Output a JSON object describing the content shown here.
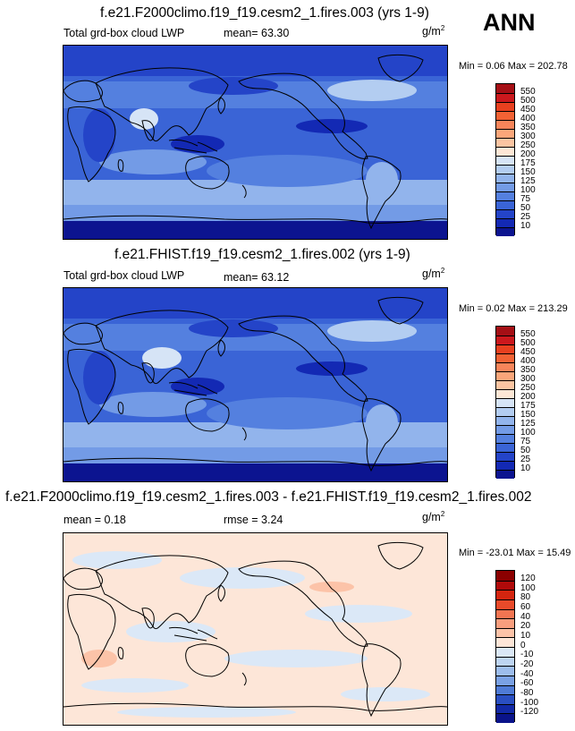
{
  "season": "ANN",
  "units": {
    "base": "g/m",
    "exp": "2"
  },
  "panels": [
    {
      "title": "f.e21.F2000climo.f19_f19.cesm2_1.fires.003 (yrs 1-9)",
      "left_label": "Total grd-box cloud LWP",
      "stat_label": "mean=  63.30",
      "minmax": "Min =   0.06 Max = 202.78",
      "levels": [
        "550",
        "500",
        "450",
        "400",
        "350",
        "300",
        "250",
        "200",
        "175",
        "150",
        "125",
        "100",
        "75",
        "50",
        "25",
        "10"
      ],
      "colors": [
        "#a50f15",
        "#cb181d",
        "#e8401f",
        "#f26234",
        "#f7855a",
        "#fba67a",
        "#fcc5a2",
        "#fde7d6",
        "#d6e4f6",
        "#b3cdf1",
        "#92b4ec",
        "#739be6",
        "#5480df",
        "#3a64d6",
        "#2444c8",
        "#1329b4",
        "#0c1490"
      ]
    },
    {
      "title": "f.e21.FHIST.f19_f19.cesm2_1.fires.002 (yrs 1-9)",
      "left_label": "Total grd-box cloud LWP",
      "stat_label": "mean=  63.12",
      "minmax": "Min =   0.02 Max = 213.29",
      "levels": [
        "550",
        "500",
        "450",
        "400",
        "350",
        "300",
        "250",
        "200",
        "175",
        "150",
        "125",
        "100",
        "75",
        "50",
        "25",
        "10"
      ],
      "colors": [
        "#a50f15",
        "#cb181d",
        "#e8401f",
        "#f26234",
        "#f7855a",
        "#fba67a",
        "#fcc5a2",
        "#fde7d6",
        "#d6e4f6",
        "#b3cdf1",
        "#92b4ec",
        "#739be6",
        "#5480df",
        "#3a64d6",
        "#2444c8",
        "#1329b4",
        "#0c1490"
      ]
    },
    {
      "title": "f.e21.F2000climo.f19_f19.cesm2_1.fires.003 - f.e21.FHIST.f19_f19.cesm2_1.fires.002",
      "left_label": "mean =   0.18",
      "stat_label": "rmse =   3.24",
      "minmax": "Min = -23.01 Max =  15.49",
      "levels": [
        "120",
        "100",
        "80",
        "60",
        "40",
        "20",
        "10",
        "0",
        "-10",
        "-20",
        "-40",
        "-60",
        "-80",
        "-100",
        "-120"
      ],
      "colors": [
        "#8b0000",
        "#b00a0a",
        "#d4250f",
        "#e84a2a",
        "#f27552",
        "#f89e7e",
        "#fcc3a8",
        "#fde6d8",
        "#dbe8f7",
        "#bed5f2",
        "#9dbdec",
        "#7aa1e4",
        "#4f7bd6",
        "#2a4fc2",
        "#1229a6",
        "#0a138a"
      ]
    }
  ]
}
